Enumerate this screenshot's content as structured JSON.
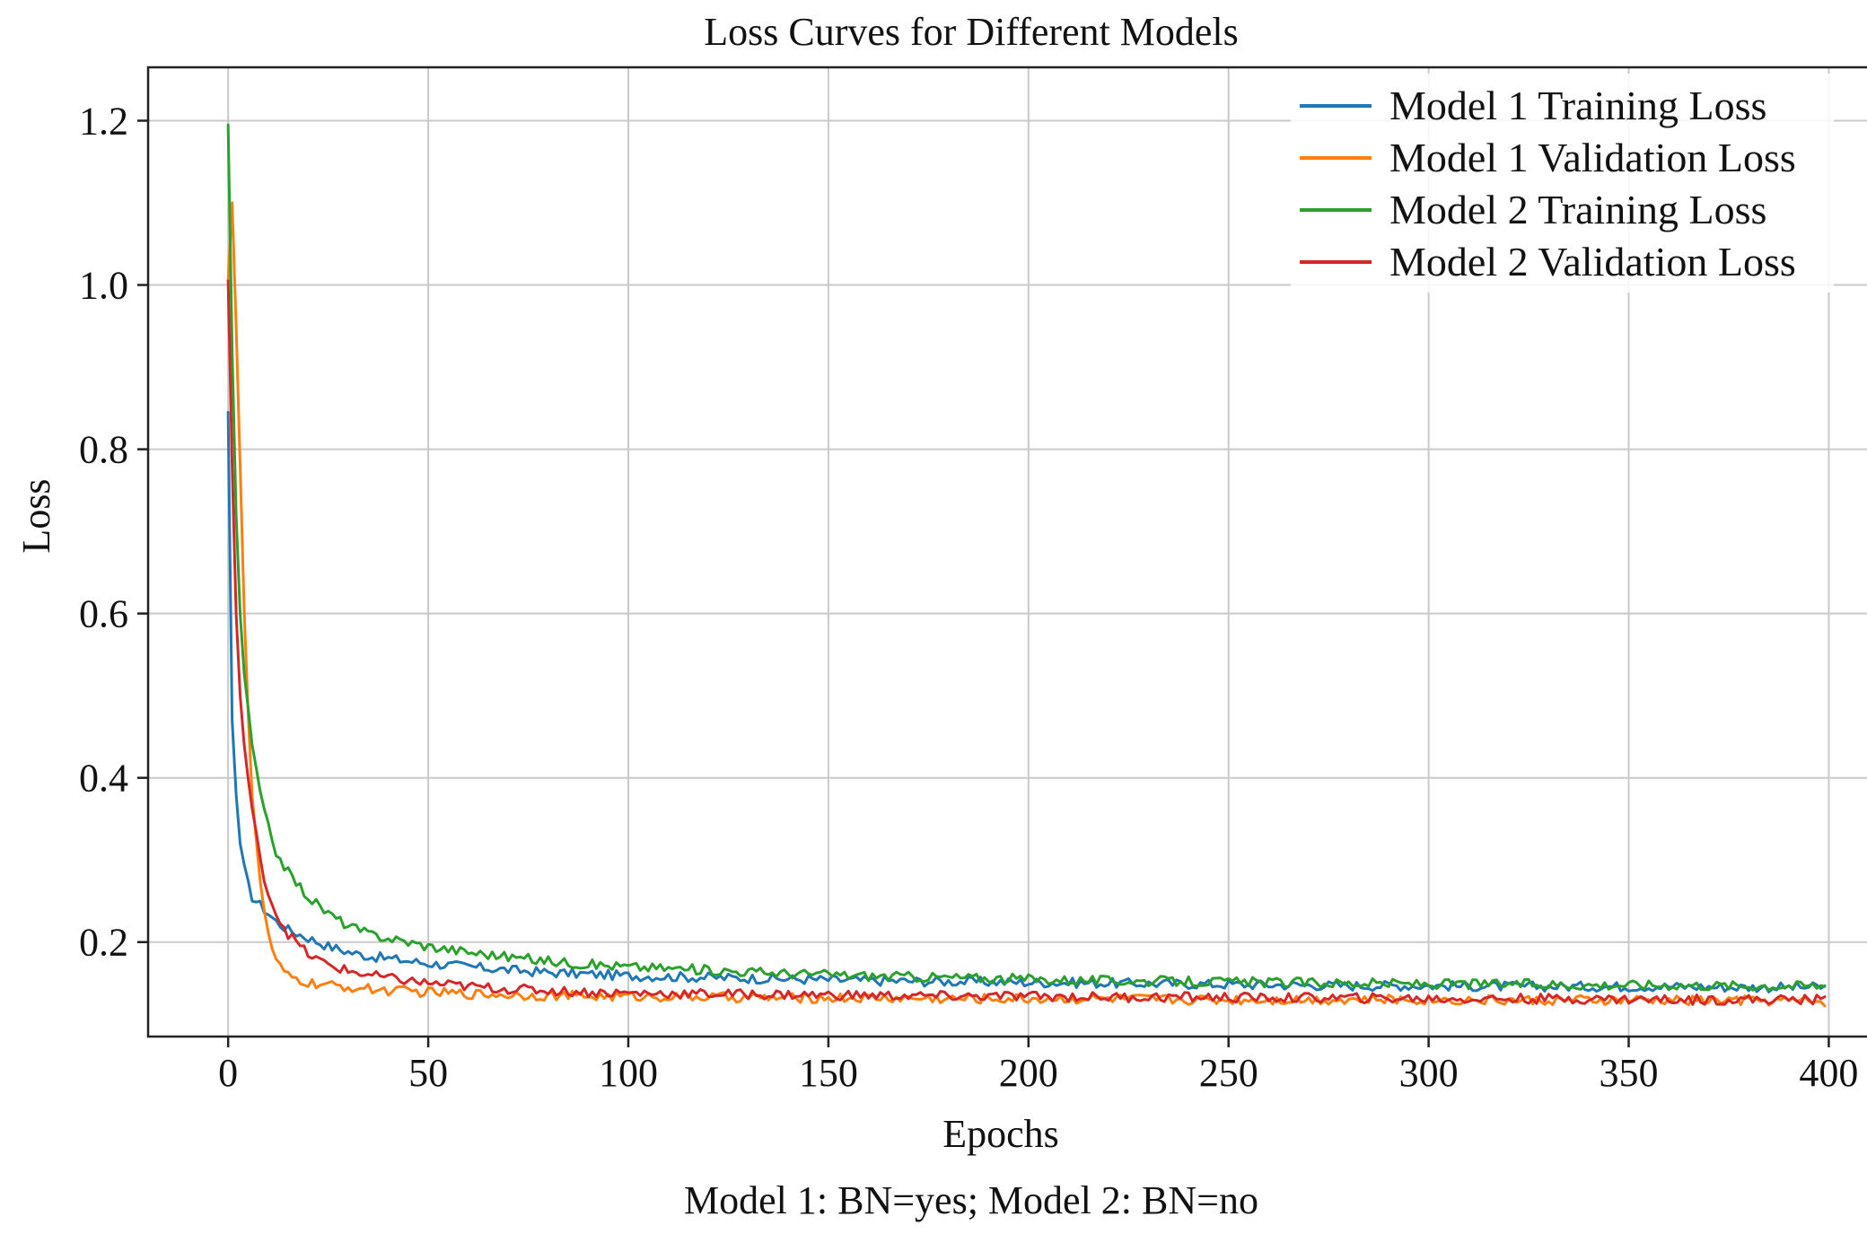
{
  "chart_data": {
    "type": "line",
    "title": "Loss Curves for Different Models",
    "xlabel": "Epochs",
    "ylabel": "Loss",
    "caption": "Model 1: BN=yes; Model 2: BN=no",
    "xlim": [
      -20,
      410
    ],
    "ylim": [
      0.085,
      1.265
    ],
    "xticks": [
      0,
      50,
      100,
      150,
      200,
      250,
      300,
      350,
      400
    ],
    "yticks": [
      0.2,
      0.4,
      0.6,
      0.8,
      1.0,
      1.2
    ],
    "ytick_labels": [
      "0.2",
      "0.4",
      "0.6",
      "0.8",
      "1.0",
      "1.2"
    ],
    "grid": true,
    "legend_position": "top-right",
    "series": [
      {
        "name": "Model 1 Training Loss",
        "color": "#1f77b4",
        "x": [
          0,
          1,
          2,
          3,
          4,
          5,
          6,
          8,
          10,
          12,
          15,
          20,
          25,
          30,
          35,
          40,
          45,
          50,
          60,
          70,
          80,
          90,
          100,
          120,
          140,
          160,
          180,
          200,
          220,
          240,
          260,
          280,
          300,
          320,
          340,
          360,
          380,
          399
        ],
        "y": [
          0.845,
          0.47,
          0.38,
          0.32,
          0.29,
          0.27,
          0.255,
          0.245,
          0.235,
          0.225,
          0.215,
          0.205,
          0.195,
          0.188,
          0.183,
          0.18,
          0.177,
          0.174,
          0.17,
          0.166,
          0.163,
          0.161,
          0.159,
          0.157,
          0.155,
          0.153,
          0.152,
          0.151,
          0.15,
          0.149,
          0.148,
          0.147,
          0.147,
          0.146,
          0.146,
          0.146,
          0.145,
          0.145
        ]
      },
      {
        "name": "Model 1 Validation Loss",
        "color": "#ff7f0e",
        "x": [
          0,
          1,
          2,
          3,
          4,
          5,
          6,
          8,
          10,
          12,
          15,
          20,
          25,
          30,
          35,
          40,
          45,
          50,
          60,
          70,
          80,
          90,
          100,
          120,
          140,
          160,
          180,
          200,
          220,
          240,
          260,
          280,
          300,
          320,
          340,
          360,
          380,
          399
        ],
        "y": [
          1.005,
          1.1,
          0.95,
          0.78,
          0.61,
          0.48,
          0.38,
          0.27,
          0.21,
          0.175,
          0.158,
          0.15,
          0.147,
          0.145,
          0.143,
          0.141,
          0.14,
          0.139,
          0.137,
          0.136,
          0.135,
          0.134,
          0.134,
          0.133,
          0.132,
          0.132,
          0.131,
          0.131,
          0.131,
          0.13,
          0.13,
          0.13,
          0.13,
          0.129,
          0.129,
          0.129,
          0.129,
          0.128
        ]
      },
      {
        "name": "Model 2 Training Loss",
        "color": "#2ca02c",
        "x": [
          0,
          1,
          2,
          3,
          4,
          5,
          6,
          8,
          10,
          12,
          15,
          20,
          25,
          30,
          35,
          40,
          45,
          50,
          60,
          70,
          80,
          90,
          100,
          120,
          140,
          160,
          180,
          200,
          220,
          240,
          260,
          280,
          300,
          320,
          340,
          360,
          380,
          399
        ],
        "y": [
          1.195,
          0.92,
          0.72,
          0.6,
          0.53,
          0.48,
          0.44,
          0.38,
          0.34,
          0.31,
          0.285,
          0.255,
          0.235,
          0.22,
          0.21,
          0.205,
          0.2,
          0.195,
          0.188,
          0.182,
          0.177,
          0.173,
          0.17,
          0.166,
          0.162,
          0.159,
          0.157,
          0.155,
          0.153,
          0.152,
          0.151,
          0.15,
          0.149,
          0.149,
          0.148,
          0.148,
          0.147,
          0.147
        ]
      },
      {
        "name": "Model 2 Validation Loss",
        "color": "#d62728",
        "x": [
          0,
          1,
          2,
          3,
          4,
          5,
          6,
          8,
          10,
          12,
          15,
          20,
          25,
          30,
          35,
          40,
          45,
          50,
          60,
          70,
          80,
          90,
          100,
          120,
          140,
          160,
          180,
          200,
          220,
          240,
          260,
          280,
          300,
          320,
          340,
          360,
          380,
          399
        ],
        "y": [
          1.005,
          0.78,
          0.6,
          0.5,
          0.44,
          0.4,
          0.36,
          0.3,
          0.26,
          0.235,
          0.21,
          0.185,
          0.172,
          0.165,
          0.16,
          0.156,
          0.153,
          0.15,
          0.146,
          0.143,
          0.141,
          0.139,
          0.138,
          0.137,
          0.136,
          0.135,
          0.134,
          0.134,
          0.133,
          0.133,
          0.132,
          0.132,
          0.131,
          0.131,
          0.131,
          0.13,
          0.13,
          0.13
        ]
      }
    ]
  }
}
